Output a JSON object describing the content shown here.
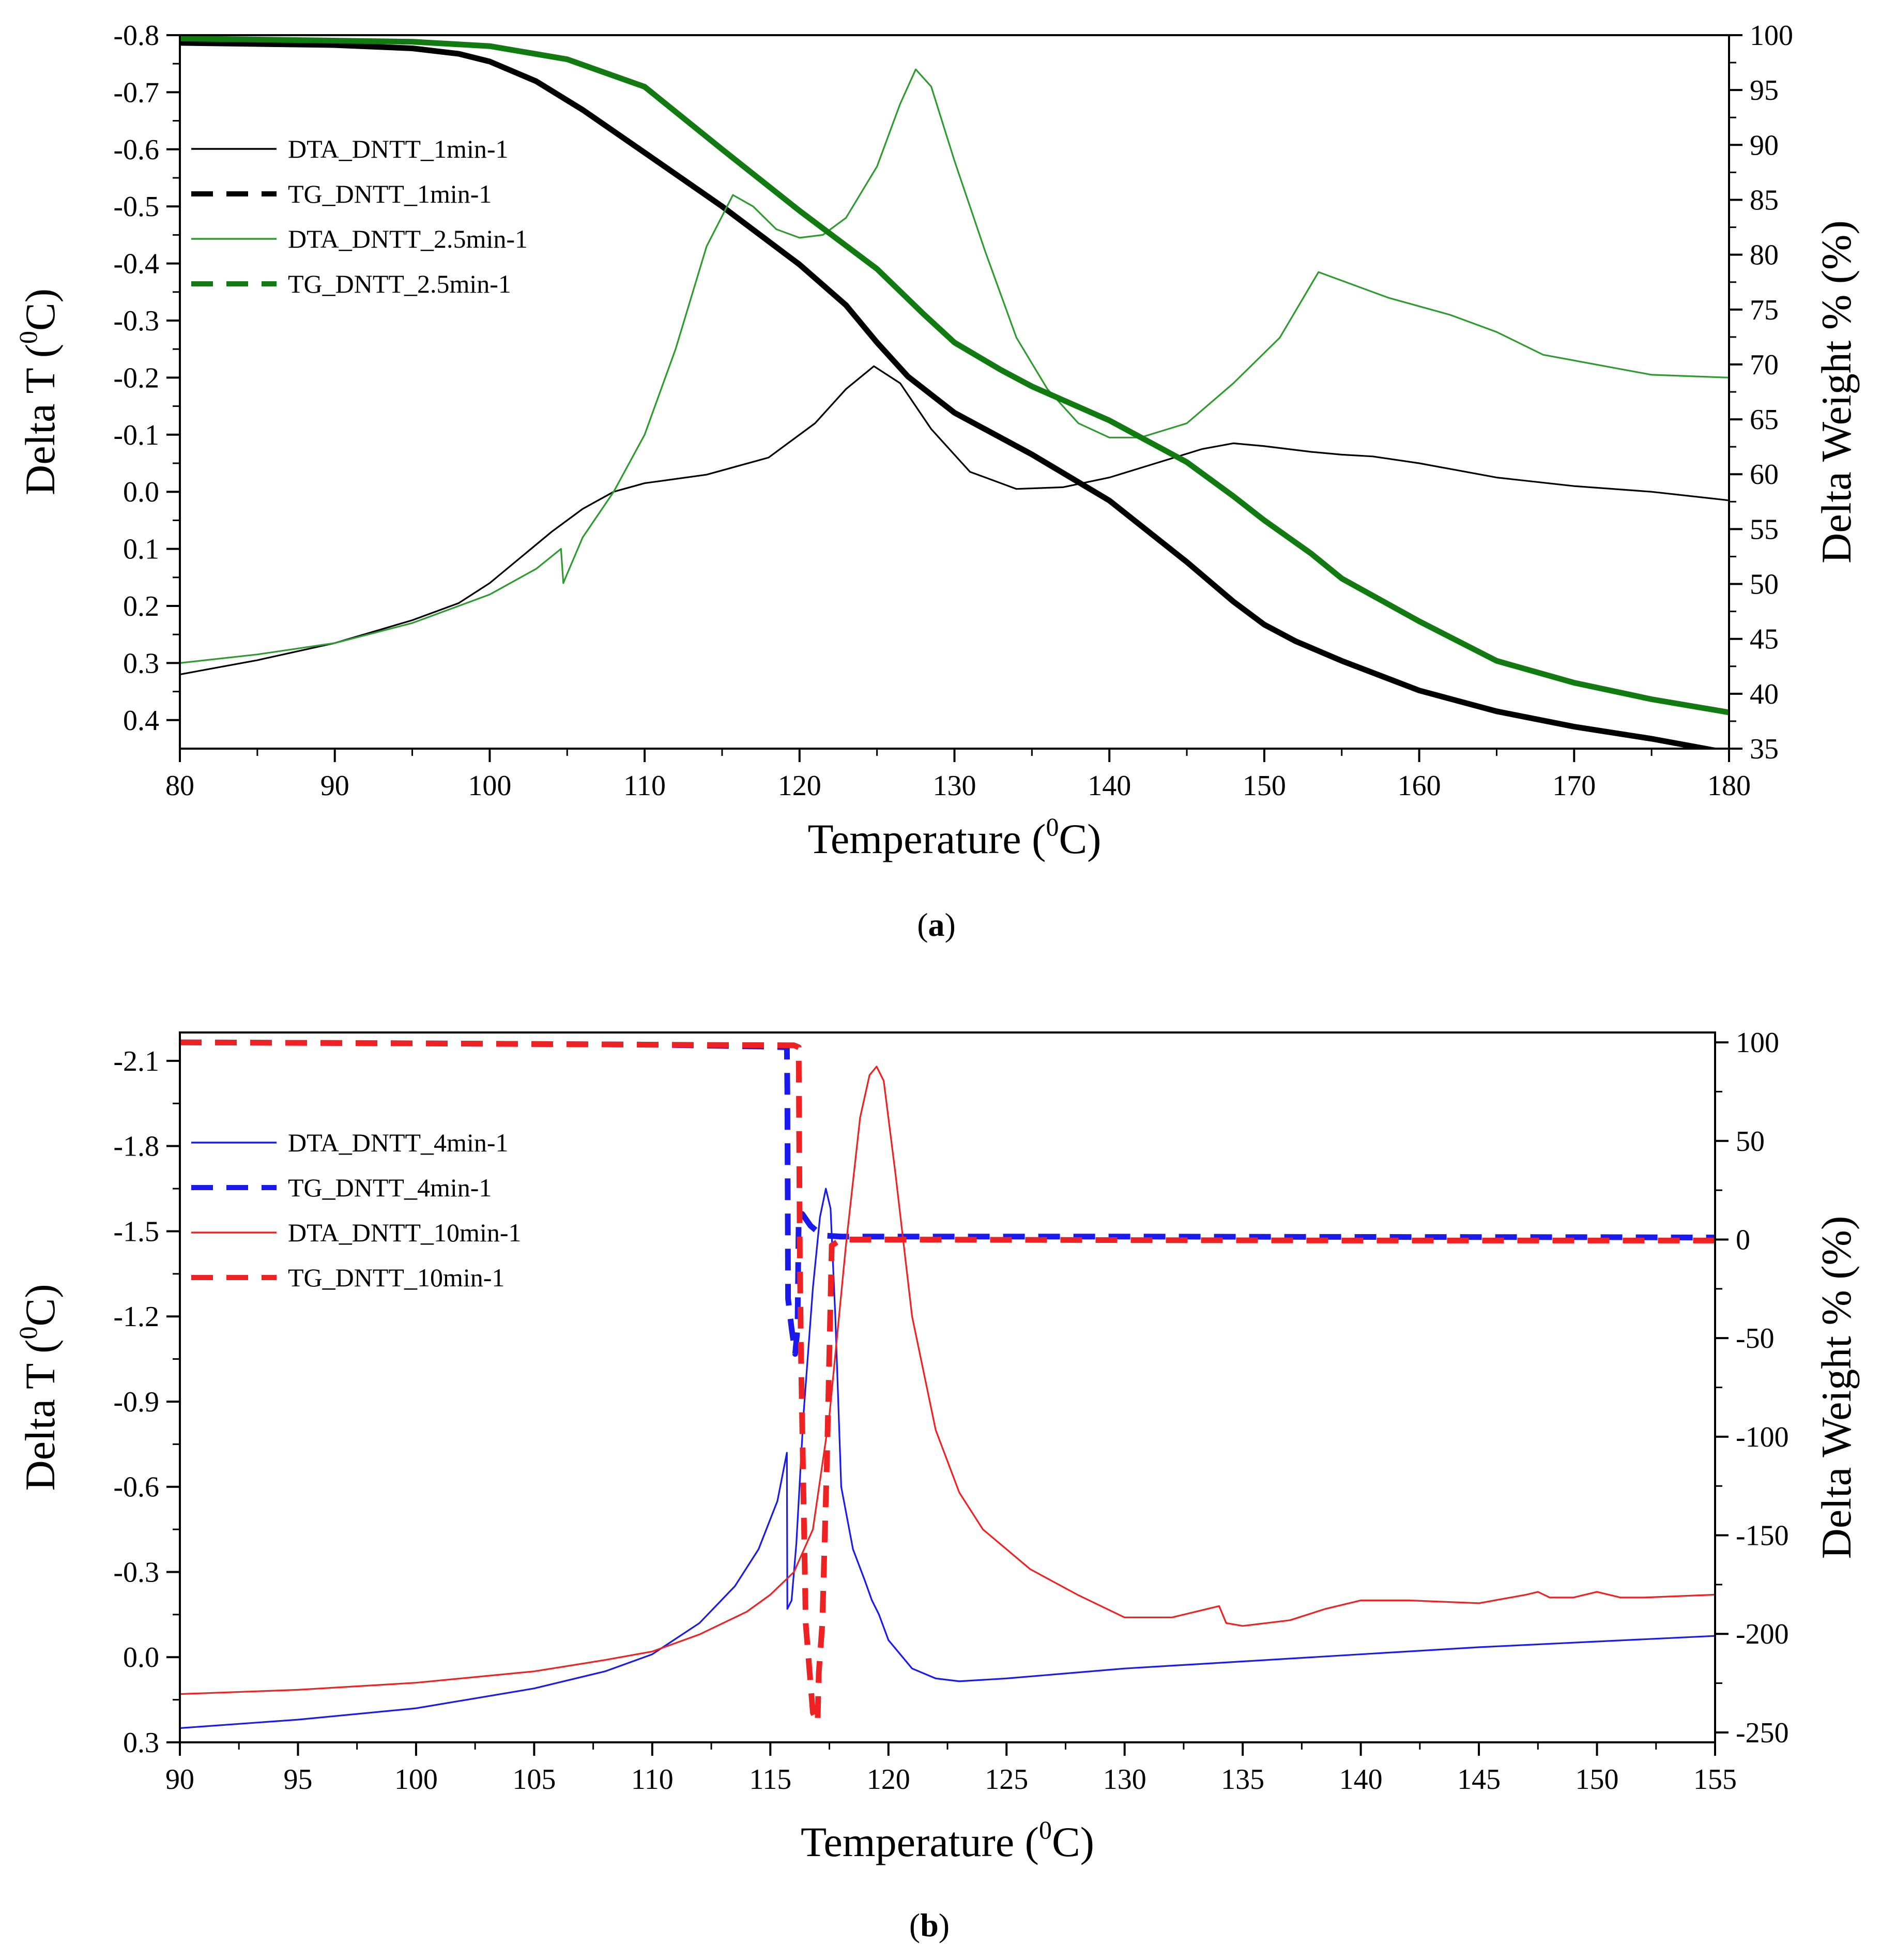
{
  "chart_data": [
    {
      "type": "line",
      "caption": {
        "open": "(",
        "letter": "a",
        "close": ")"
      },
      "xlabel": {
        "text": "Temperature (",
        "sup": "0",
        "unit": "C)"
      },
      "ylabel_left": {
        "text": "Delta T (",
        "sup": "0",
        "unit": "C)"
      },
      "ylabel_right": "Delta Weight % (%)",
      "xlim": [
        80,
        180
      ],
      "ylim_left": [
        0.45,
        -0.8
      ],
      "ylim_right": [
        35,
        100
      ],
      "x_ticks": [
        80,
        90,
        100,
        110,
        120,
        130,
        140,
        150,
        160,
        170,
        180
      ],
      "x_tick_labels": [
        "80",
        "90",
        "100",
        "110",
        "120",
        "130",
        "140",
        "150",
        "160",
        "170",
        "180"
      ],
      "y_left_ticks": [
        -0.8,
        -0.7,
        -0.6,
        -0.5,
        -0.4,
        -0.3,
        -0.2,
        -0.1,
        0.0,
        0.1,
        0.2,
        0.3,
        0.4
      ],
      "y_left_tick_labels": [
        "-0.8",
        "-0.7",
        "-0.6",
        "-0.5",
        "-0.4",
        "-0.3",
        "-0.2",
        "-0.1",
        "0.0",
        "0.1",
        "0.2",
        "0.3",
        "0.4"
      ],
      "y_right_ticks": [
        35,
        40,
        45,
        50,
        55,
        60,
        65,
        70,
        75,
        80,
        85,
        90,
        95,
        100
      ],
      "y_right_tick_labels": [
        "35",
        "40",
        "45",
        "50",
        "55",
        "60",
        "65",
        "70",
        "75",
        "80",
        "85",
        "90",
        "95",
        "100"
      ],
      "legend_position": "upper-left",
      "series": [
        {
          "name": "DTA_DNTT_1min-1",
          "axis": "left",
          "color": "#000000",
          "style": "thin",
          "x": [
            80,
            85,
            90,
            95,
            98,
            100,
            102,
            104,
            106,
            108,
            110,
            114,
            118,
            121,
            123,
            124.8,
            126.5,
            128.5,
            131,
            134,
            137,
            140,
            143,
            146,
            148,
            150,
            153,
            155,
            157,
            158,
            160,
            165,
            170,
            175,
            180
          ],
          "y": [
            0.32,
            0.295,
            0.265,
            0.225,
            0.195,
            0.16,
            0.115,
            0.07,
            0.03,
            0.0,
            -0.015,
            -0.03,
            -0.06,
            -0.12,
            -0.18,
            -0.22,
            -0.19,
            -0.11,
            -0.035,
            -0.005,
            -0.008,
            -0.025,
            -0.05,
            -0.075,
            -0.085,
            -0.08,
            -0.07,
            -0.065,
            -0.062,
            -0.058,
            -0.05,
            -0.025,
            -0.01,
            0.0,
            0.015
          ]
        },
        {
          "name": "TG_DNTT_1min-1",
          "axis": "right",
          "color": "#000000",
          "style": "thick",
          "x": [
            80,
            90,
            95,
            98,
            100,
            103,
            106,
            110,
            115,
            120,
            123,
            125,
            127,
            130,
            135,
            140,
            145,
            148,
            150,
            152,
            155,
            160,
            165,
            170,
            175,
            180
          ],
          "y": [
            99.3,
            99.1,
            98.8,
            98.3,
            97.6,
            95.8,
            93.2,
            89.3,
            84.4,
            79.1,
            75.4,
            72.0,
            68.9,
            65.6,
            61.8,
            57.6,
            52.0,
            48.4,
            46.3,
            44.8,
            43.0,
            40.3,
            38.4,
            37.0,
            35.9,
            34.6
          ]
        },
        {
          "name": "DTA_DNTT_2.5min-1",
          "axis": "left",
          "color": "#2f9a2f",
          "style": "thin",
          "x": [
            80,
            85,
            90,
            95,
            100,
            103,
            104.6,
            104.75,
            104.9,
            106,
            108,
            110,
            112,
            114,
            115.7,
            117,
            118.5,
            120,
            121.5,
            123,
            125,
            126.5,
            127.5,
            128.5,
            130,
            132,
            134,
            136,
            138,
            140,
            142,
            145,
            148,
            151,
            153.5,
            155,
            158,
            162,
            165,
            168,
            172,
            175,
            180
          ],
          "y": [
            0.3,
            0.285,
            0.265,
            0.23,
            0.18,
            0.135,
            0.1,
            0.16,
            0.15,
            0.08,
            0.0,
            -0.1,
            -0.25,
            -0.43,
            -0.52,
            -0.5,
            -0.46,
            -0.445,
            -0.45,
            -0.48,
            -0.57,
            -0.68,
            -0.74,
            -0.71,
            -0.58,
            -0.42,
            -0.27,
            -0.18,
            -0.12,
            -0.095,
            -0.095,
            -0.12,
            -0.19,
            -0.27,
            -0.385,
            -0.37,
            -0.34,
            -0.31,
            -0.28,
            -0.24,
            -0.22,
            -0.205,
            -0.2
          ]
        },
        {
          "name": "TG_DNTT_2.5min-1",
          "axis": "right",
          "color": "#117a11",
          "style": "thick",
          "x": [
            80,
            95,
            100,
            105,
            110,
            115,
            120,
            125,
            128,
            130,
            133,
            135,
            140,
            145,
            148,
            150,
            153,
            155,
            160,
            165,
            170,
            175,
            180
          ],
          "y": [
            99.7,
            99.4,
            99.0,
            97.8,
            95.3,
            89.6,
            84.0,
            78.7,
            74.6,
            72.0,
            69.5,
            68.0,
            64.9,
            61.1,
            58.0,
            55.8,
            52.8,
            50.5,
            46.6,
            43.0,
            41.0,
            39.5,
            38.3
          ]
        }
      ]
    },
    {
      "type": "line",
      "caption": {
        "open": "(",
        "letter": "b",
        "close": ")"
      },
      "xlabel": {
        "text": "Temperature (",
        "sup": "0",
        "unit": "C)"
      },
      "ylabel_left": {
        "text": "Delta T (",
        "sup": "0",
        "unit": "C)"
      },
      "ylabel_right": "Delta Weight % (%)",
      "xlim": [
        90,
        155
      ],
      "ylim_left": [
        0.3,
        -2.2
      ],
      "ylim_right": [
        -255,
        105
      ],
      "x_ticks": [
        90,
        95,
        100,
        105,
        110,
        115,
        120,
        125,
        130,
        135,
        140,
        145,
        150,
        155
      ],
      "x_tick_labels": [
        "90",
        "95",
        "100",
        "105",
        "110",
        "115",
        "120",
        "125",
        "130",
        "135",
        "140",
        "145",
        "150",
        "155"
      ],
      "y_left_ticks": [
        -2.1,
        -1.8,
        -1.5,
        -1.2,
        -0.9,
        -0.6,
        -0.3,
        0.0,
        0.3
      ],
      "y_left_tick_labels": [
        "-2.1",
        "-1.8",
        "-1.5",
        "-1.2",
        "-0.9",
        "-0.6",
        "-0.3",
        "0.0",
        "0.3"
      ],
      "y_right_ticks": [
        -250,
        -200,
        -150,
        -100,
        -50,
        0,
        50,
        100
      ],
      "y_right_tick_labels": [
        "-250",
        "-200",
        "-150",
        "-100",
        "-50",
        "0",
        "50",
        "100"
      ],
      "legend_position": "upper-left",
      "series": [
        {
          "name": "DTA_DNTT_4min-1",
          "axis": "left",
          "color": "#1a1aee",
          "style": "thin",
          "x": [
            90,
            95,
            100,
            105,
            108,
            110,
            112,
            113.5,
            114.5,
            115.3,
            115.7,
            115.72,
            115.9,
            116.1,
            116.4,
            116.8,
            117.1,
            117.35,
            117.55,
            117.75,
            118,
            118.5,
            119,
            119.3,
            119.6,
            120,
            121,
            122,
            123,
            125,
            130,
            135,
            140,
            145,
            150,
            155
          ],
          "y": [
            0.25,
            0.22,
            0.18,
            0.11,
            0.05,
            -0.01,
            -0.12,
            -0.25,
            -0.38,
            -0.55,
            -0.72,
            -0.17,
            -0.2,
            -0.4,
            -0.85,
            -1.3,
            -1.55,
            -1.65,
            -1.58,
            -1.2,
            -0.6,
            -0.38,
            -0.27,
            -0.2,
            -0.15,
            -0.06,
            0.04,
            0.075,
            0.085,
            0.075,
            0.04,
            0.015,
            -0.01,
            -0.035,
            -0.055,
            -0.075
          ]
        },
        {
          "name": "TG_DNTT_4min-1",
          "axis": "right",
          "color": "#1a1aee",
          "style": "dashed",
          "x": [
            90,
            100,
            110,
            115,
            115.7,
            115.72,
            115.75,
            115.9,
            116.05,
            116.15,
            116.2,
            116.35,
            116.7,
            117,
            117.3,
            118,
            120,
            130,
            140,
            150,
            155
          ],
          "y": [
            100,
            99.5,
            98.8,
            97.8,
            97.5,
            75,
            -30,
            -45,
            -58,
            -45,
            10,
            13,
            7,
            4,
            2,
            1.5,
            1.5,
            1.5,
            1.3,
            1.2,
            1.0
          ]
        },
        {
          "name": "DTA_DNTT_10min-1",
          "axis": "left",
          "color": "#ee2222",
          "style": "thin",
          "x": [
            90,
            95,
            100,
            105,
            108,
            110,
            112,
            114,
            115,
            116,
            116.8,
            117.5,
            118.2,
            118.8,
            119.2,
            119.5,
            119.8,
            120.3,
            121,
            122,
            123,
            124,
            125,
            126,
            128,
            130,
            132,
            133.5,
            134,
            134.3,
            135,
            137,
            138.5,
            140,
            142,
            145,
            147,
            147.5,
            148,
            149,
            150,
            150.5,
            151,
            152,
            155
          ],
          "y": [
            0.13,
            0.115,
            0.09,
            0.05,
            0.01,
            -0.02,
            -0.08,
            -0.16,
            -0.22,
            -0.3,
            -0.45,
            -0.85,
            -1.45,
            -1.9,
            -2.05,
            -2.08,
            -2.03,
            -1.7,
            -1.2,
            -0.8,
            -0.58,
            -0.45,
            -0.38,
            -0.31,
            -0.22,
            -0.14,
            -0.14,
            -0.17,
            -0.18,
            -0.12,
            -0.11,
            -0.13,
            -0.17,
            -0.2,
            -0.2,
            -0.19,
            -0.22,
            -0.23,
            -0.21,
            -0.21,
            -0.23,
            -0.22,
            -0.21,
            -0.21,
            -0.22
          ]
        },
        {
          "name": "TG_DNTT_10min-1",
          "axis": "right",
          "color": "#ee2222",
          "style": "dashed",
          "x": [
            90,
            100,
            110,
            116,
            116.2,
            116.25,
            116.3,
            116.5,
            116.8,
            117,
            117.05,
            117.2,
            117.4,
            117.6,
            118,
            120,
            130,
            140,
            150,
            155
          ],
          "y": [
            100,
            99.5,
            98.8,
            98.5,
            97.5,
            -10,
            -60,
            -195,
            -240,
            -245,
            -220,
            -195,
            -110,
            -3,
            0,
            0,
            -0.3,
            -0.5,
            -0.5,
            -0.5
          ]
        }
      ]
    }
  ]
}
